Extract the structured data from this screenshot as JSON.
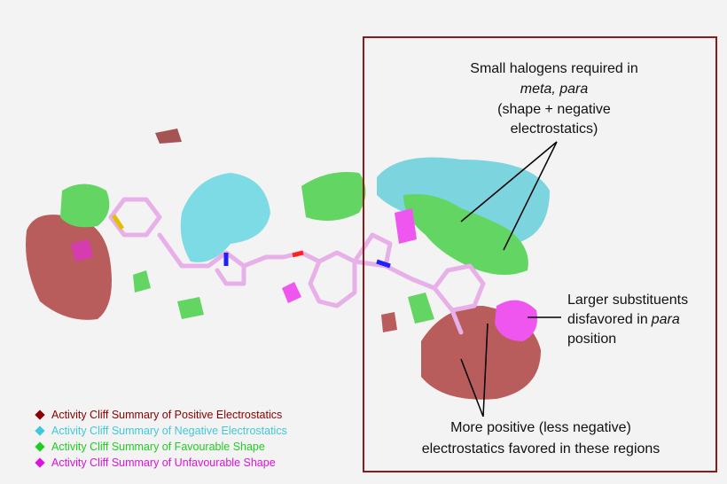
{
  "annotations": [
    {
      "lines": [
        "Small halogens required in",
        "meta, para",
        "(shape + negative",
        "electrostatics)"
      ]
    },
    {
      "lines": [
        "Larger substituents",
        "disfavored in",
        "para",
        "position"
      ]
    },
    {
      "lines": [
        "More positive (less negative)",
        "electrostatics favored in these regions"
      ]
    }
  ],
  "legend": [
    {
      "label": "Activity Cliff Summary of Positive Electrostatics",
      "color": "#8b0000"
    },
    {
      "label": "Activity Cliff Summary of Negative Electrostatics",
      "color": "#40c8d8"
    },
    {
      "label": "Activity Cliff Summary of Favourable Shape",
      "color": "#22cc22"
    },
    {
      "label": "Activity Cliff Summary of Unfavourable Shape",
      "color": "#e010e0"
    }
  ]
}
